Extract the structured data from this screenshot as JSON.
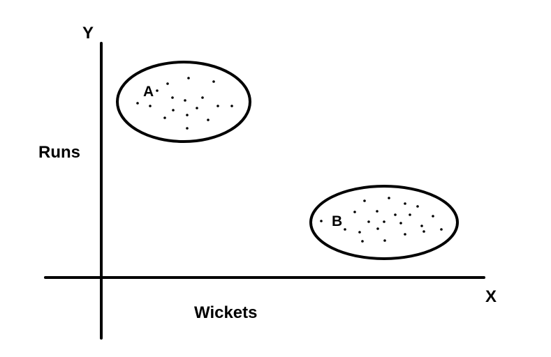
{
  "axes": {
    "x_letter": "X",
    "y_letter": "Y",
    "x_title": "Wickets",
    "y_title": "Runs"
  },
  "clusters": [
    {
      "label": "A",
      "point_count": 17
    },
    {
      "label": "B",
      "point_count": 22
    }
  ],
  "colors": {
    "ink": "#000000",
    "background": "#ffffff"
  }
}
